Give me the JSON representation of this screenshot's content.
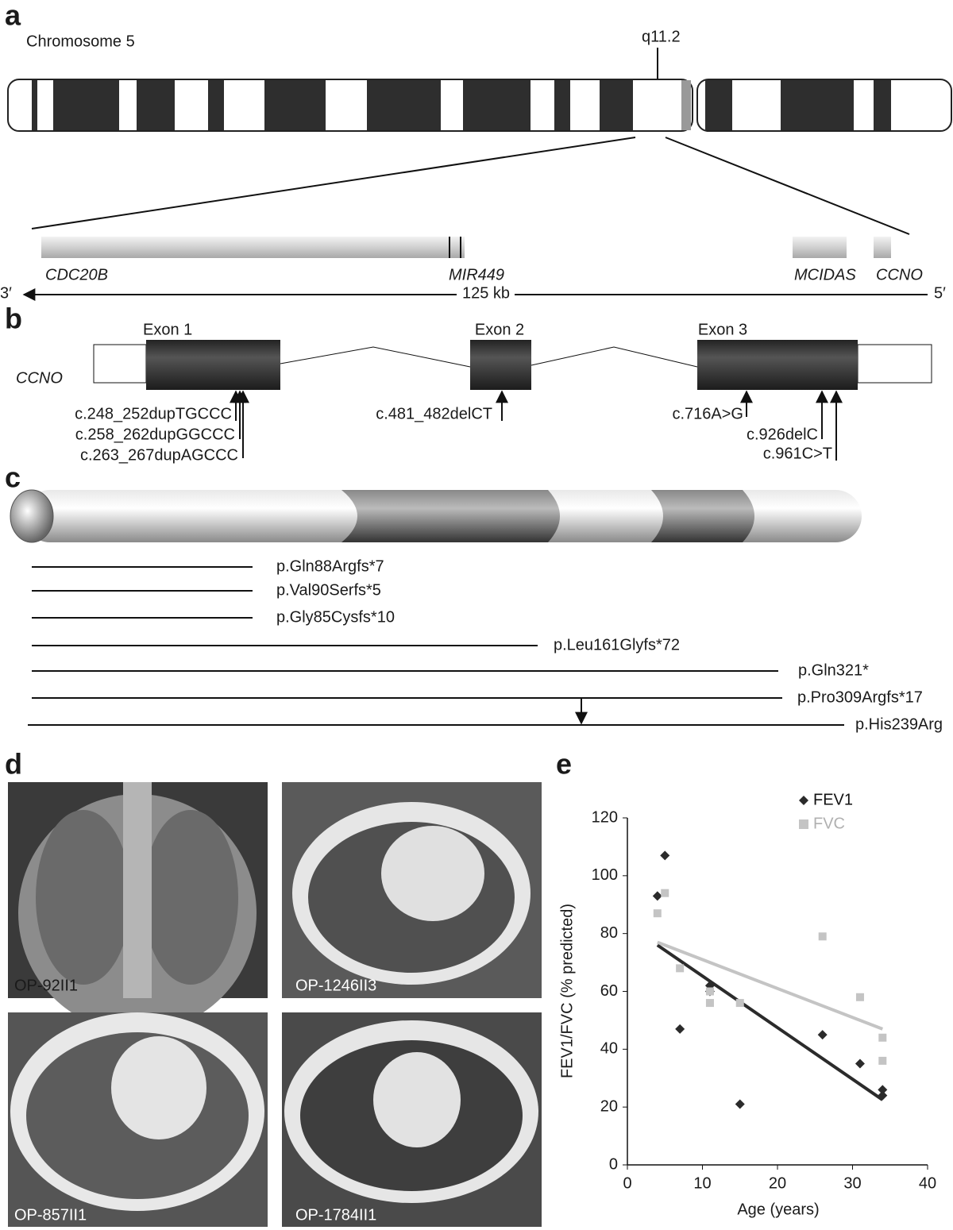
{
  "panel_labels": [
    "a",
    "b",
    "c",
    "d",
    "e"
  ],
  "panel_a": {
    "title": "Chromosome 5",
    "band": "q11.2",
    "genes": [
      "CDC20B",
      "MIR449",
      "MCIDAS",
      "CCNO"
    ],
    "left_end": "3′",
    "scale": "125 kb",
    "right_end": "5′"
  },
  "panel_b": {
    "gene": "CCNO",
    "exons": [
      "Exon 1",
      "Exon 2",
      "Exon 3"
    ],
    "mutations": [
      "c.248_252dupTGCCC",
      "c.258_262dupGGCCC",
      "c.263_267dupAGCCC",
      "c.481_482delCT",
      "c.716A>G",
      "c.926delC",
      "c.961C>T"
    ]
  },
  "panel_c": {
    "variants": [
      "p.Gln88Argfs*7",
      "p.Val90Serfs*5",
      "p.Gly85Cysfs*10",
      "p.Leu161Glyfs*72",
      "p.Gln321*",
      "p.Pro309Argfs*17",
      "p.His239Arg"
    ]
  },
  "panel_d": {
    "images": [
      "OP-92II1",
      "OP-1246II3",
      "OP-857II1",
      "OP-1784II1"
    ]
  },
  "chart_data": {
    "type": "scatter",
    "x_label": "Age (years)",
    "y_label": "FEV1/FVC (% predicted)",
    "x": [
      4,
      5,
      7,
      11,
      11,
      15,
      26,
      31,
      34,
      34
    ],
    "series": [
      {
        "name": "FEV1",
        "color": "#2b2b2b",
        "marker": "diamond",
        "values": [
          93,
          107,
          47,
          62,
          60,
          21,
          45,
          35,
          26,
          24
        ],
        "trend": {
          "x": [
            4,
            34
          ],
          "values": [
            76,
            22.5
          ]
        }
      },
      {
        "name": "FVC",
        "color": "#c4c4c4",
        "marker": "square",
        "values": [
          87,
          94,
          68,
          56,
          60,
          56,
          79,
          58,
          44,
          36
        ],
        "trend": {
          "x": [
            4,
            34
          ],
          "values": [
            77,
            47
          ]
        }
      }
    ],
    "xlim": [
      0,
      40
    ],
    "xticks": [
      0,
      10,
      20,
      30,
      40
    ],
    "ylim": [
      0,
      120
    ],
    "yticks": [
      0,
      20,
      40,
      60,
      80,
      100,
      120
    ],
    "legend": "upper right"
  }
}
